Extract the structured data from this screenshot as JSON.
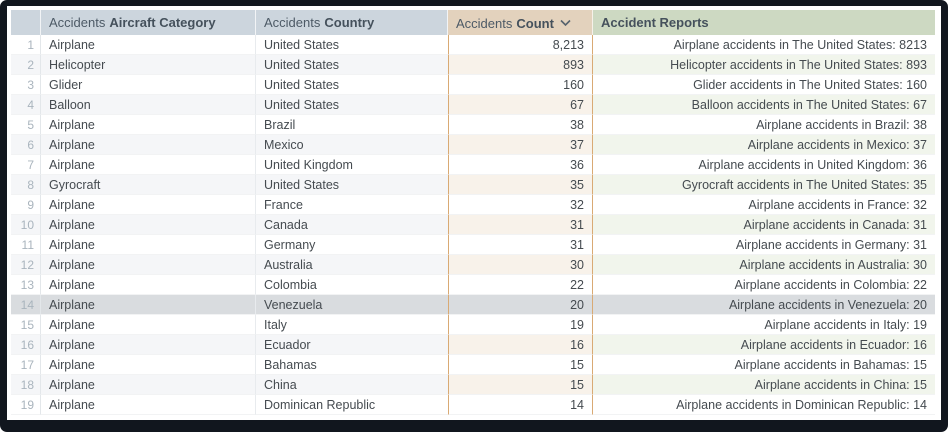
{
  "table": {
    "headers": [
      {
        "prefix": "Accidents",
        "label": "Aircraft Category"
      },
      {
        "prefix": "Accidents",
        "label": "Country"
      },
      {
        "prefix": "Accidents",
        "label": "Count",
        "sort": "desc"
      },
      {
        "prefix": "",
        "label": "Accident Reports"
      }
    ],
    "sort_icon": "chevron-down",
    "highlighted_row": 14,
    "rows": [
      {
        "num": "1",
        "category": "Airplane",
        "country": "United States",
        "count": "8,213",
        "report": "Airplane accidents in The United States: 8213"
      },
      {
        "num": "2",
        "category": "Helicopter",
        "country": "United States",
        "count": "893",
        "report": "Helicopter accidents in The United States: 893"
      },
      {
        "num": "3",
        "category": "Glider",
        "country": "United States",
        "count": "160",
        "report": "Glider accidents in The United States: 160"
      },
      {
        "num": "4",
        "category": "Balloon",
        "country": "United States",
        "count": "67",
        "report": "Balloon accidents in The United States: 67"
      },
      {
        "num": "5",
        "category": "Airplane",
        "country": "Brazil",
        "count": "38",
        "report": "Airplane accidents in Brazil: 38"
      },
      {
        "num": "6",
        "category": "Airplane",
        "country": "Mexico",
        "count": "37",
        "report": "Airplane accidents in Mexico: 37"
      },
      {
        "num": "7",
        "category": "Airplane",
        "country": "United Kingdom",
        "count": "36",
        "report": "Airplane accidents in United Kingdom: 36"
      },
      {
        "num": "8",
        "category": "Gyrocraft",
        "country": "United States",
        "count": "35",
        "report": "Gyrocraft accidents in The United States: 35"
      },
      {
        "num": "9",
        "category": "Airplane",
        "country": "France",
        "count": "32",
        "report": "Airplane accidents in France: 32"
      },
      {
        "num": "10",
        "category": "Airplane",
        "country": "Canada",
        "count": "31",
        "report": "Airplane accidents in Canada: 31"
      },
      {
        "num": "11",
        "category": "Airplane",
        "country": "Germany",
        "count": "31",
        "report": "Airplane accidents in Germany: 31"
      },
      {
        "num": "12",
        "category": "Airplane",
        "country": "Australia",
        "count": "30",
        "report": "Airplane accidents in Australia: 30"
      },
      {
        "num": "13",
        "category": "Airplane",
        "country": "Colombia",
        "count": "22",
        "report": "Airplane accidents in Colombia: 22"
      },
      {
        "num": "14",
        "category": "Airplane",
        "country": "Venezuela",
        "count": "20",
        "report": "Airplane accidents in Venezuela: 20"
      },
      {
        "num": "15",
        "category": "Airplane",
        "country": "Italy",
        "count": "19",
        "report": "Airplane accidents in Italy: 19"
      },
      {
        "num": "16",
        "category": "Airplane",
        "country": "Ecuador",
        "count": "16",
        "report": "Airplane accidents in Ecuador: 16"
      },
      {
        "num": "17",
        "category": "Airplane",
        "country": "Bahamas",
        "count": "15",
        "report": "Airplane accidents in Bahamas: 15"
      },
      {
        "num": "18",
        "category": "Airplane",
        "country": "China",
        "count": "15",
        "report": "Airplane accidents in China: 15"
      },
      {
        "num": "19",
        "category": "Airplane",
        "country": "Dominican Republic",
        "count": "14",
        "report": "Airplane accidents in Dominican Republic: 14"
      }
    ]
  },
  "colors": {
    "frame": "#11161e",
    "header_default": "#ccd5dd",
    "header_count": "#e3d2bd",
    "header_reports": "#cdd9c2",
    "even_row_default": "#f5f6f8",
    "even_row_count": "#f8f2ea",
    "even_row_reports": "#f1f5ec",
    "highlight_row": "#d9dcdf",
    "count_column_border": "#d9aa74"
  }
}
